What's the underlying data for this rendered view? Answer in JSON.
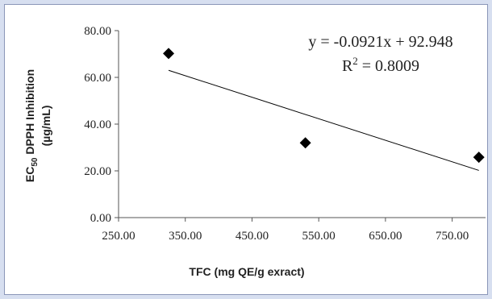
{
  "chart_data": {
    "type": "scatter",
    "xlabel": "TFC (mg QE/g exract)",
    "ylabel_line1_prefix": "EC",
    "ylabel_line1_sub": "50",
    "ylabel_line1_suffix": " DPPH Inhibition",
    "ylabel_line2": "(µg/mL)",
    "xlim": [
      250,
      800
    ],
    "ylim": [
      0,
      80
    ],
    "x_ticks": [
      "250.00",
      "350.00",
      "450.00",
      "550.00",
      "650.00",
      "750.00"
    ],
    "x_tick_values": [
      250,
      350,
      450,
      550,
      650,
      750
    ],
    "y_ticks": [
      "0.00",
      "20.00",
      "40.00",
      "60.00",
      "80.00"
    ],
    "y_tick_values": [
      0,
      20,
      40,
      60,
      80
    ],
    "points": [
      {
        "x": 325,
        "y": 70.2
      },
      {
        "x": 530,
        "y": 32.0
      },
      {
        "x": 790,
        "y": 25.8
      }
    ],
    "trendline": {
      "slope": -0.0921,
      "intercept": 92.948,
      "x_start": 325,
      "x_end": 790
    },
    "equation": "y = -0.0921x + 92.948",
    "r2_prefix": "R",
    "r2_sup": "2",
    "r2_suffix": " = 0.8009",
    "marker_color": "#000000",
    "line_color": "#000000"
  }
}
